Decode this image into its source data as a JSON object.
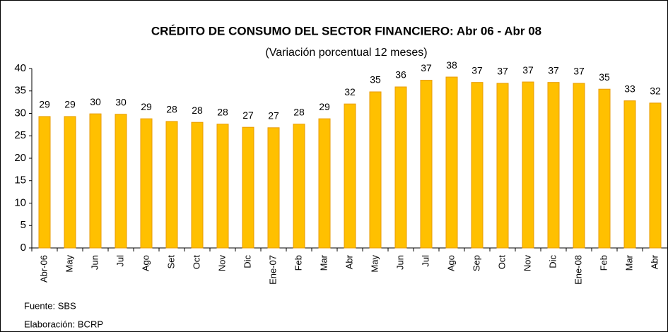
{
  "chart_data": {
    "type": "bar",
    "title": "CRÉDITO DE CONSUMO DEL SECTOR FINANCIERO: Abr 06 - Abr 08",
    "subtitle": "(Variación porcentual 12 meses)",
    "categories": [
      "Abr-06",
      "May",
      "Jun",
      "Jul",
      "Ago",
      "Set",
      "Oct",
      "Nov",
      "Dic",
      "Ene-07",
      "Feb",
      "Mar",
      "Abr",
      "May",
      "Jun",
      "Jul",
      "Ago",
      "Sep",
      "Oct",
      "Nov",
      "Dic",
      "Ene-08",
      "Feb",
      "Mar",
      "Abr"
    ],
    "values": [
      29.3,
      29.3,
      29.9,
      29.8,
      28.8,
      28.2,
      28.0,
      27.6,
      26.9,
      26.8,
      27.6,
      28.8,
      32.1,
      34.8,
      35.9,
      37.4,
      38.1,
      36.9,
      36.7,
      37.0,
      36.9,
      36.7,
      35.4,
      32.8,
      32.3
    ],
    "value_labels": [
      "29",
      "29",
      "30",
      "30",
      "29",
      "28",
      "28",
      "28",
      "27",
      "27",
      "28",
      "29",
      "32",
      "35",
      "36",
      "37",
      "38",
      "37",
      "37",
      "37",
      "37",
      "37",
      "35",
      "33",
      "32"
    ],
    "color": "#ffc000",
    "ylim": [
      0,
      40
    ],
    "yticks": [
      0,
      5,
      10,
      15,
      20,
      25,
      30,
      35,
      40
    ],
    "grid": false,
    "source": "Fuente: SBS",
    "credit": "Elaboración: BCRP"
  }
}
